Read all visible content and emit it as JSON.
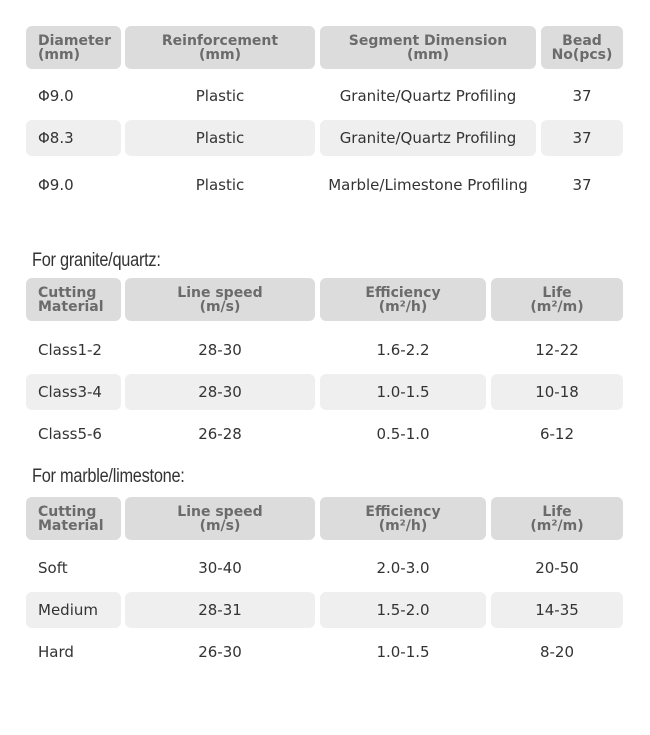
{
  "table1": {
    "headers": [
      "Diameter\n(mm)",
      "Reinforcement\n(mm)",
      "Segment Dimension\n(mm)",
      "Bead\nNo(pcs)"
    ],
    "rows": [
      [
        "Φ9.0",
        "Plastic",
        "Granite/Quartz Profiling",
        "37"
      ],
      [
        "Φ8.3",
        "Plastic",
        "Granite/Quartz Profiling",
        "37"
      ],
      [
        "Φ9.0",
        "Plastic",
        "Marble/Limestone Profiling",
        "37"
      ]
    ]
  },
  "granite": {
    "title": "For granite/quartz:",
    "headers": [
      "Cutting\nMaterial",
      "Line speed\n(m/s)",
      "Efficiency\n(m²/h)",
      "Life\n(m²/m)"
    ],
    "rows": [
      [
        "Class1-2",
        "28-30",
        "1.6-2.2",
        "12-22"
      ],
      [
        "Class3-4",
        "28-30",
        "1.0-1.5",
        "10-18"
      ],
      [
        "Class5-6",
        "26-28",
        "0.5-1.0",
        "6-12"
      ]
    ]
  },
  "marble": {
    "title": "For marble/limestone:",
    "headers": [
      "Cutting\nMaterial",
      "Line speed\n(m/s)",
      "Efficiency\n(m²/h)",
      "Life\n(m²/m)"
    ],
    "rows": [
      [
        "Soft",
        "30-40",
        "2.0-3.0",
        "20-50"
      ],
      [
        "Medium",
        "28-31",
        "1.5-2.0",
        "14-35"
      ],
      [
        "Hard",
        "26-30",
        "1.0-1.5",
        "8-20"
      ]
    ]
  }
}
